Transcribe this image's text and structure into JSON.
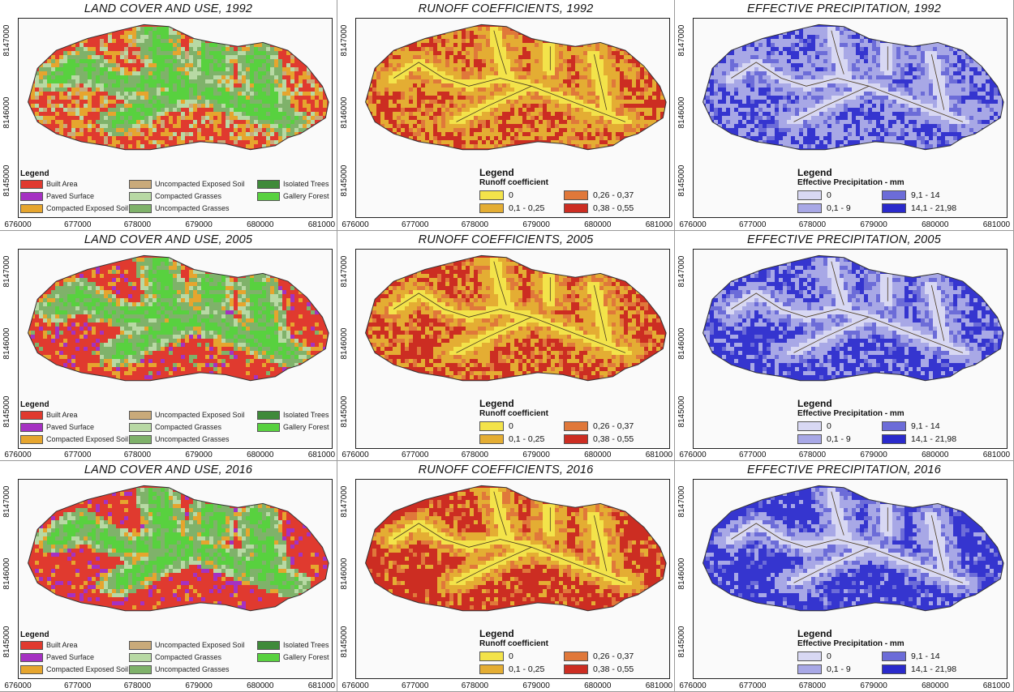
{
  "panels": [
    {
      "title": "LAND COVER AND USE, 1992",
      "kind": "landcover",
      "year": "1992"
    },
    {
      "title": "RUNOFF COEFFICIENTS, 1992",
      "kind": "runoff",
      "year": "1992"
    },
    {
      "title": "EFFECTIVE PRECIPITATION, 1992",
      "kind": "precip",
      "year": "1992"
    },
    {
      "title": "LAND COVER AND USE, 2005",
      "kind": "landcover",
      "year": "2005"
    },
    {
      "title": "RUNOFF COEFFICIENTS, 2005",
      "kind": "runoff",
      "year": "2005"
    },
    {
      "title": "EFFECTIVE PRECIPITATION, 2005",
      "kind": "precip",
      "year": "2005"
    },
    {
      "title": "LAND COVER AND USE, 2016",
      "kind": "landcover",
      "year": "2016"
    },
    {
      "title": "RUNOFF COEFFICIENTS, 2016",
      "kind": "runoff",
      "year": "2016"
    },
    {
      "title": "EFFECTIVE PRECIPITATION, 2016",
      "kind": "precip",
      "year": "2016"
    }
  ],
  "axes": {
    "x_ticks": [
      "676000",
      "677000",
      "678000",
      "679000",
      "680000",
      "681000"
    ],
    "y_ticks": [
      "8147000",
      "8146000",
      "8145000"
    ]
  },
  "legend_landcover": {
    "title": "Legend",
    "items": [
      {
        "label": "Built Area",
        "color": "#e03a2f"
      },
      {
        "label": "Paved Surface",
        "color": "#a531c2"
      },
      {
        "label": "Compacted Exposed Soil",
        "color": "#e6a52e"
      },
      {
        "label": "Uncompacted Exposed Soil",
        "color": "#c9aa7a"
      },
      {
        "label": "Compacted Grasses",
        "color": "#b8d9a4"
      },
      {
        "label": "Uncompacted Grasses",
        "color": "#7fb26a"
      },
      {
        "label": "Isolated Trees",
        "color": "#3f8a3a"
      },
      {
        "label": "Gallery Forest",
        "color": "#58d13f"
      }
    ]
  },
  "legend_runoff": {
    "title": "Legend",
    "subtitle": "Runoff coefficient",
    "items": [
      {
        "label": "0",
        "color": "#f3e34a"
      },
      {
        "label": "0,1   - 0,25",
        "color": "#e4ad33"
      },
      {
        "label": "0,26 - 0,37",
        "color": "#e0783a"
      },
      {
        "label": "0,38 - 0,55",
        "color": "#cc2d22"
      }
    ]
  },
  "legend_precip": {
    "title": "Legend",
    "subtitle": "Effective Precipitation - mm",
    "items": [
      {
        "label": "0",
        "color": "#d8d8f3"
      },
      {
        "label": "0,1    - 9",
        "color": "#a8a8e6"
      },
      {
        "label": "9,1    - 14",
        "color": "#6c6cd8"
      },
      {
        "label": "14,1 - 21,98",
        "color": "#2a2acb"
      }
    ]
  }
}
